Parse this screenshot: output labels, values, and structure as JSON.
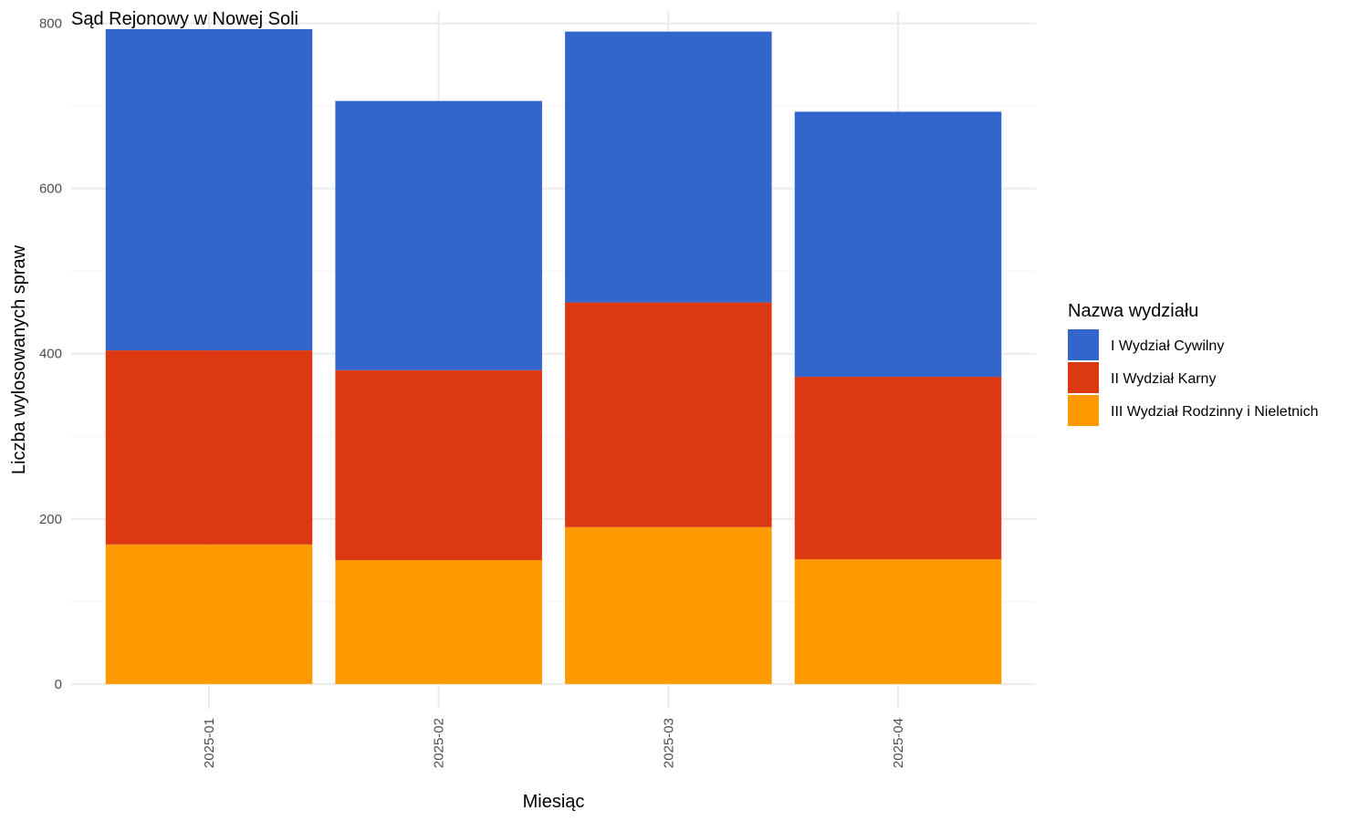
{
  "chart_data": {
    "type": "bar",
    "stacked": true,
    "title": "Sąd Rejonowy w Nowej Soli",
    "xlabel": "Miesiąc",
    "ylabel": "Liczba wylosowanych spraw",
    "categories": [
      "2025-01",
      "2025-02",
      "2025-03",
      "2025-04"
    ],
    "yticks": [
      0,
      200,
      400,
      600,
      800
    ],
    "ylim": [
      -30,
      815
    ],
    "grid": true,
    "legend": {
      "title": "Nazwa wydziału",
      "placement": "right"
    },
    "series": [
      {
        "name": "III Wydział Rodzinny i Nieletnich",
        "color": "#FF9900",
        "values": [
          169,
          150,
          190,
          151
        ]
      },
      {
        "name": "II Wydział Karny",
        "color": "#DC3912",
        "values": [
          235,
          230,
          272,
          221
        ]
      },
      {
        "name": "I Wydział Cywilny",
        "color": "#3366CC",
        "values": [
          389,
          326,
          328,
          321
        ]
      }
    ],
    "legend_order": [
      "I Wydział Cywilny",
      "II Wydział Karny",
      "III Wydział Rodzinny i Nieletnich"
    ]
  }
}
